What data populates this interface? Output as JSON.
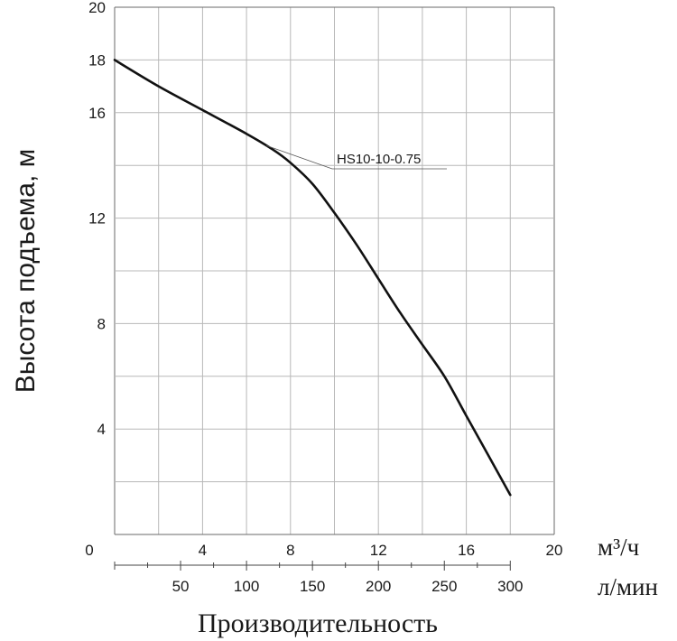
{
  "chart_data": {
    "type": "line",
    "ylabel": "Высота подъема, м",
    "xlabel": "Производительность",
    "x_unit_top": "м³/ч",
    "x_unit_bottom": "л/мин",
    "xlim": [
      0,
      20
    ],
    "ylim": [
      0,
      20
    ],
    "x_major_ticks": [
      0,
      4,
      8,
      12,
      16,
      20
    ],
    "y_major_ticks": [
      4,
      8,
      12,
      16,
      18,
      20
    ],
    "y_grid_step": 2,
    "x_grid_step": 2,
    "lpm_ticks": [
      50,
      100,
      150,
      200,
      250,
      300
    ],
    "lpm_minor_ticks": [
      25,
      75,
      125,
      175,
      225,
      275
    ],
    "grid": true,
    "series": [
      {
        "name": "HS10-10-0.75",
        "x": [
          0,
          2,
          4,
          6,
          7.2,
          8,
          9,
          10,
          11,
          12,
          13,
          14,
          15,
          16,
          17,
          18
        ],
        "y": [
          18,
          17.0,
          16.1,
          15.2,
          14.6,
          14.1,
          13.3,
          12.2,
          11.0,
          9.7,
          8.4,
          7.2,
          6.0,
          4.5,
          3.0,
          1.5
        ]
      }
    ],
    "annotation": {
      "text": "HS10-10-0.75",
      "at_x": 6.9
    }
  }
}
